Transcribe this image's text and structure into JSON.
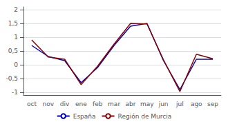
{
  "chart_data": {
    "type": "line",
    "categories": [
      "oct",
      "nov",
      "div",
      "ene",
      "feb",
      "mar",
      "abr",
      "may",
      "jun",
      "jul",
      "ago",
      "sep"
    ],
    "series": [
      {
        "name": "España",
        "color": "#0000bb",
        "values": [
          0.7,
          0.3,
          0.15,
          -0.65,
          -0.1,
          0.7,
          1.4,
          1.5,
          0.15,
          -0.9,
          0.2,
          0.2
        ]
      },
      {
        "name": "Región de Murcia",
        "color": "#8b0000",
        "values": [
          0.9,
          0.28,
          0.2,
          -0.72,
          -0.05,
          0.75,
          1.5,
          1.48,
          0.18,
          -0.97,
          0.38,
          0.22
        ]
      }
    ],
    "ylim": [
      -1.1,
      2.1
    ],
    "yticks": [
      -1,
      {
        "value": -0.5,
        "label": "-0,5"
      },
      0,
      {
        "value": 0.5,
        "label": "0,5"
      },
      1,
      {
        "value": 1.5,
        "label": "1,5"
      },
      2
    ],
    "grid": true,
    "legend": "bottom"
  }
}
